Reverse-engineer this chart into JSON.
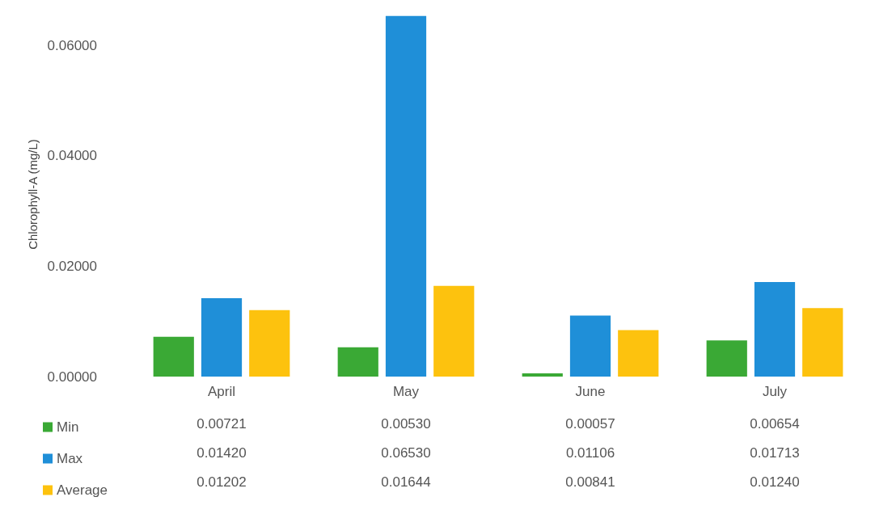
{
  "chart_data": {
    "type": "bar",
    "ylabel": "Chlorophyll-A (mg/L)",
    "categories": [
      "April",
      "May",
      "June",
      "July"
    ],
    "series": [
      {
        "name": "Min",
        "color": "#3aa935",
        "values": [
          0.00721,
          0.0053,
          0.00057,
          0.00654
        ],
        "value_labels": [
          "0.00721",
          "0.00530",
          "0.00057",
          "0.00654"
        ]
      },
      {
        "name": "Max",
        "color": "#1f8fd8",
        "values": [
          0.0142,
          0.0653,
          0.01106,
          0.01713
        ],
        "value_labels": [
          "0.01420",
          "0.06530",
          "0.01106",
          "0.01713"
        ]
      },
      {
        "name": "Average",
        "color": "#fdc20e",
        "values": [
          0.01202,
          0.01644,
          0.00841,
          0.0124
        ],
        "value_labels": [
          "0.01202",
          "0.01644",
          "0.00841",
          "0.01240"
        ]
      }
    ],
    "ylim": [
      0,
      0.066
    ],
    "yticks": [
      {
        "value": 0,
        "label": "0.00000"
      },
      {
        "value": 0.02,
        "label": "0.02000"
      },
      {
        "value": 0.04,
        "label": "0.04000"
      },
      {
        "value": 0.06,
        "label": "0.06000"
      }
    ],
    "grid": false,
    "legend": "bottom left"
  }
}
